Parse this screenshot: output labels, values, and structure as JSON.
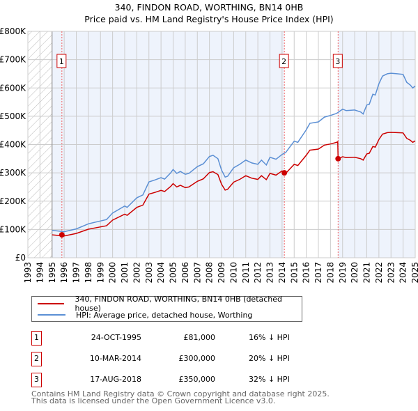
{
  "title": "340, FINDON ROAD, WORTHING, BN14 0HB",
  "subtitle": "Price paid vs. HM Land Registry's House Price Index (HPI)",
  "chart_data": {
    "type": "line",
    "title": "340, FINDON ROAD, WORTHING, BN14 0HB",
    "subtitle": "Price paid vs. HM Land Registry's House Price Index (HPI)",
    "xlim": [
      1993,
      2025
    ],
    "ylim": [
      0,
      800000
    ],
    "x_ticks": [
      "1993",
      "1994",
      "1995",
      "1996",
      "1997",
      "1998",
      "1999",
      "2000",
      "2001",
      "2002",
      "2003",
      "2004",
      "2005",
      "2006",
      "2007",
      "2008",
      "2009",
      "2010",
      "2011",
      "2012",
      "2013",
      "2014",
      "2015",
      "2016",
      "2017",
      "2018",
      "2019",
      "2020",
      "2021",
      "2022",
      "2023",
      "2024",
      "2025"
    ],
    "y_ticks": [
      {
        "v": 0,
        "label": "£0"
      },
      {
        "v": 100000,
        "label": "£100K"
      },
      {
        "v": 200000,
        "label": "£200K"
      },
      {
        "v": 300000,
        "label": "£300K"
      },
      {
        "v": 400000,
        "label": "£400K"
      },
      {
        "v": 500000,
        "label": "£500K"
      },
      {
        "v": 600000,
        "label": "£600K"
      },
      {
        "v": 700000,
        "label": "£700K"
      },
      {
        "v": 800000,
        "label": "£800K"
      }
    ],
    "grid": true,
    "no_data_before": 1995,
    "series": [
      {
        "name": "340, FINDON ROAD, WORTHING, BN14 0HB (detached house)",
        "color": "#cc0000",
        "points": [
          [
            1995,
            81
          ],
          [
            1996,
            77
          ],
          [
            1997,
            86
          ],
          [
            1998,
            101
          ],
          [
            1999,
            109
          ],
          [
            1999.5,
            113
          ],
          [
            2000,
            133
          ],
          [
            2001,
            154
          ],
          [
            2001.2,
            150
          ],
          [
            2002,
            178
          ],
          [
            2002.5,
            186
          ],
          [
            2003,
            225
          ],
          [
            2003.5,
            231
          ],
          [
            2004,
            238
          ],
          [
            2004.3,
            234
          ],
          [
            2004.8,
            252
          ],
          [
            2005,
            262
          ],
          [
            2005.3,
            250
          ],
          [
            2005.6,
            256
          ],
          [
            2006,
            248
          ],
          [
            2006.3,
            250
          ],
          [
            2007,
            270
          ],
          [
            2007.5,
            279
          ],
          [
            2008,
            301
          ],
          [
            2008.3,
            304
          ],
          [
            2008.7,
            294
          ],
          [
            2009,
            260
          ],
          [
            2009.3,
            239
          ],
          [
            2009.5,
            242
          ],
          [
            2010,
            267
          ],
          [
            2010.5,
            277
          ],
          [
            2011,
            290
          ],
          [
            2011.5,
            281
          ],
          [
            2012,
            277
          ],
          [
            2012.3,
            290
          ],
          [
            2012.7,
            276
          ],
          [
            2013,
            298
          ],
          [
            2013.5,
            292
          ],
          [
            2014,
            307
          ],
          [
            2014.19,
            300
          ],
          [
            2014.3,
            298
          ],
          [
            2015,
            330
          ],
          [
            2015.3,
            326
          ],
          [
            2016,
            362
          ],
          [
            2016.3,
            380
          ],
          [
            2017,
            384
          ],
          [
            2017.5,
            398
          ],
          [
            2018,
            402
          ],
          [
            2018.5,
            408
          ],
          [
            2018.6,
            410
          ],
          [
            2018.63,
            350
          ],
          [
            2019,
            357
          ],
          [
            2019.3,
            354
          ],
          [
            2020,
            355
          ],
          [
            2020.5,
            350
          ],
          [
            2020.7,
            345
          ],
          [
            2021,
            367
          ],
          [
            2021.2,
            369
          ],
          [
            2021.5,
            393
          ],
          [
            2021.7,
            391
          ],
          [
            2022,
            418
          ],
          [
            2022.3,
            437
          ],
          [
            2022.7,
            442
          ],
          [
            2023,
            443
          ],
          [
            2023.5,
            442
          ],
          [
            2024,
            441
          ],
          [
            2024.3,
            422
          ],
          [
            2024.6,
            415
          ],
          [
            2024.8,
            408
          ],
          [
            2025,
            413
          ]
        ]
      },
      {
        "name": "HPI: Average price, detached house, Worthing",
        "color": "#5b8fd4",
        "points": [
          [
            1995,
            97
          ],
          [
            1996,
            92
          ],
          [
            1997,
            102
          ],
          [
            1998,
            120
          ],
          [
            1999,
            130
          ],
          [
            1999.5,
            135
          ],
          [
            2000,
            158
          ],
          [
            2001,
            183
          ],
          [
            2001.2,
            178
          ],
          [
            2002,
            212
          ],
          [
            2002.5,
            222
          ],
          [
            2003,
            268
          ],
          [
            2003.5,
            275
          ],
          [
            2004,
            283
          ],
          [
            2004.3,
            278
          ],
          [
            2004.8,
            300
          ],
          [
            2005,
            312
          ],
          [
            2005.3,
            298
          ],
          [
            2005.6,
            305
          ],
          [
            2006,
            295
          ],
          [
            2006.3,
            298
          ],
          [
            2007,
            322
          ],
          [
            2007.5,
            332
          ],
          [
            2008,
            358
          ],
          [
            2008.3,
            362
          ],
          [
            2008.7,
            350
          ],
          [
            2009,
            310
          ],
          [
            2009.3,
            285
          ],
          [
            2009.5,
            288
          ],
          [
            2010,
            318
          ],
          [
            2010.5,
            330
          ],
          [
            2011,
            345
          ],
          [
            2011.5,
            335
          ],
          [
            2012,
            330
          ],
          [
            2012.3,
            345
          ],
          [
            2012.7,
            328
          ],
          [
            2013,
            355
          ],
          [
            2013.5,
            348
          ],
          [
            2014,
            365
          ],
          [
            2014.3,
            372
          ],
          [
            2015,
            412
          ],
          [
            2015.3,
            408
          ],
          [
            2016,
            452
          ],
          [
            2016.3,
            475
          ],
          [
            2017,
            480
          ],
          [
            2017.5,
            497
          ],
          [
            2018,
            503
          ],
          [
            2018.5,
            510
          ],
          [
            2019,
            525
          ],
          [
            2019.3,
            520
          ],
          [
            2020,
            522
          ],
          [
            2020.5,
            515
          ],
          [
            2020.7,
            508
          ],
          [
            2021,
            540
          ],
          [
            2021.2,
            542
          ],
          [
            2021.5,
            578
          ],
          [
            2021.7,
            575
          ],
          [
            2022,
            615
          ],
          [
            2022.3,
            642
          ],
          [
            2022.7,
            650
          ],
          [
            2023,
            652
          ],
          [
            2023.5,
            650
          ],
          [
            2024,
            648
          ],
          [
            2024.3,
            620
          ],
          [
            2024.6,
            610
          ],
          [
            2024.8,
            600
          ],
          [
            2025,
            607
          ]
        ]
      }
    ],
    "y_unit": "thousand GBP",
    "sales": [
      {
        "label": "1",
        "x": 1995.81,
        "y": 81
      },
      {
        "label": "2",
        "x": 2014.19,
        "y": 300
      },
      {
        "label": "3",
        "x": 2018.63,
        "y": 350
      }
    ]
  },
  "legend": [
    {
      "label": "340, FINDON ROAD, WORTHING, BN14 0HB (detached house)",
      "color": "#cc0000"
    },
    {
      "label": "HPI: Average price, detached house, Worthing",
      "color": "#5b8fd4"
    }
  ],
  "transactions": [
    {
      "num": "1",
      "date": "24-OCT-1995",
      "price": "£81,000",
      "hpi": "16% ↓ HPI"
    },
    {
      "num": "2",
      "date": "10-MAR-2014",
      "price": "£300,000",
      "hpi": "20% ↓ HPI"
    },
    {
      "num": "3",
      "date": "17-AUG-2018",
      "price": "£350,000",
      "hpi": "32% ↓ HPI"
    }
  ],
  "footer": [
    "Contains HM Land Registry data © Crown copyright and database right 2025.",
    "This data is licensed under the Open Government Licence v3.0."
  ]
}
